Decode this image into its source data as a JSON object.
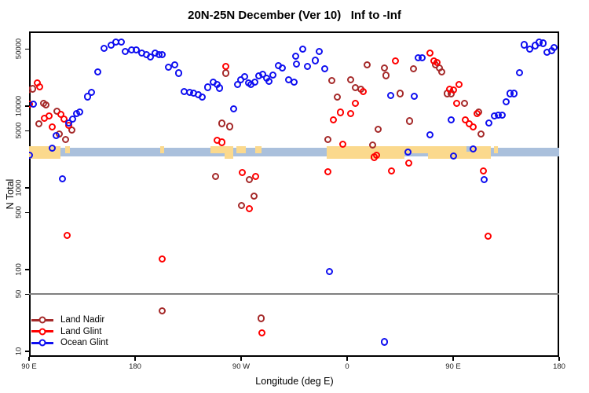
{
  "title": "20N-25N December (Ver 10)   Inf to -Inf",
  "chart_data": {
    "type": "scatter",
    "title": "20N-25N December (Ver 10)   Inf to -Inf",
    "xlabel": "Longitude (deg E)",
    "ylabel": "N Total",
    "x_axis": {
      "unit": "deg E (wrapped eastward 90E to 180)",
      "range": [
        90,
        540
      ],
      "ticks": [
        {
          "lon": 90,
          "label": "90 E"
        },
        {
          "lon": 180,
          "label": "180"
        },
        {
          "lon": 270,
          "label": "90 W"
        },
        {
          "lon": 360,
          "label": "0"
        },
        {
          "lon": 450,
          "label": "90 E"
        },
        {
          "lon": 540,
          "label": "180"
        }
      ]
    },
    "y_axis": {
      "scale": "log",
      "range": [
        8.5,
        80000
      ],
      "ticks": [
        10,
        50,
        100,
        500,
        1000,
        5000,
        10000,
        50000
      ]
    },
    "reference_line": {
      "value": 50,
      "color": "#808080"
    },
    "map_strip": {
      "description": "world land/ocean band for 20N-25N drawn across plot near N=2300-2900",
      "ocean_color": "#aac0dc",
      "land_color": "#fbd98d",
      "land_segments": [
        {
          "from": 90,
          "to": 116.5,
          "cover": "full"
        },
        {
          "from": 120.7,
          "to": 124.7,
          "cover": "top"
        },
        {
          "from": 201.3,
          "to": 204.5,
          "cover": "top"
        },
        {
          "from": 244,
          "to": 256,
          "cover": "top"
        },
        {
          "from": 256,
          "to": 263.3,
          "cover": "full"
        },
        {
          "from": 266,
          "to": 274,
          "cover": "top"
        },
        {
          "from": 282,
          "to": 287.3,
          "cover": "top"
        },
        {
          "from": 342.7,
          "to": 408.7,
          "cover": "full"
        },
        {
          "from": 408.7,
          "to": 428.7,
          "cover": "top"
        },
        {
          "from": 428.7,
          "to": 482,
          "cover": "full"
        },
        {
          "from": 484.7,
          "to": 488,
          "cover": "top"
        }
      ],
      "ocean_notches": [
        {
          "from": 461.3,
          "to": 464.7,
          "cover": "top"
        }
      ]
    },
    "legend": {
      "position": "bottom-left"
    },
    "series": [
      {
        "name": "Land Nadir",
        "color": "#a52a2a",
        "points": [
          [
            89.5,
            15500
          ],
          [
            93.3,
            16000
          ],
          [
            98.7,
            6000
          ],
          [
            102.7,
            10700
          ],
          [
            104.7,
            10200
          ],
          [
            114,
            8550
          ],
          [
            116,
            4500
          ],
          [
            121.3,
            3870
          ],
          [
            126.7,
            5050
          ],
          [
            203.3,
            31
          ],
          [
            248.7,
            1360
          ],
          [
            254,
            6050
          ],
          [
            257.3,
            24900
          ],
          [
            260.7,
            5550
          ],
          [
            270.7,
            600
          ],
          [
            277.3,
            1240
          ],
          [
            281.3,
            785
          ],
          [
            287.3,
            25
          ],
          [
            344,
            3870
          ],
          [
            347.3,
            20300
          ],
          [
            352,
            12800
          ],
          [
            363.3,
            20700
          ],
          [
            367.3,
            16600
          ],
          [
            372,
            15900
          ],
          [
            377.3,
            31600
          ],
          [
            382,
            3320
          ],
          [
            386.7,
            5150
          ],
          [
            392,
            28900
          ],
          [
            393.3,
            23300
          ],
          [
            405.3,
            14100
          ],
          [
            413.3,
            6500
          ],
          [
            416.7,
            28300
          ],
          [
            435.3,
            31600
          ],
          [
            438.7,
            28900
          ],
          [
            440.7,
            25800
          ],
          [
            445.3,
            14100
          ],
          [
            448.7,
            14100
          ],
          [
            460,
            10700
          ],
          [
            472,
            8350
          ],
          [
            474,
            4500
          ]
        ]
      },
      {
        "name": "Land Glint",
        "color": "#ff0000",
        "points": [
          [
            90.7,
            10400
          ],
          [
            97.3,
            18900
          ],
          [
            99.3,
            17000
          ],
          [
            103.3,
            7000
          ],
          [
            107.3,
            7500
          ],
          [
            110,
            5500
          ],
          [
            117.3,
            7850
          ],
          [
            120,
            6850
          ],
          [
            122.7,
            258
          ],
          [
            124,
            5750
          ],
          [
            203.3,
            133
          ],
          [
            250,
            3780
          ],
          [
            254,
            3550
          ],
          [
            257.3,
            30200
          ],
          [
            271.3,
            1520
          ],
          [
            277.3,
            550
          ],
          [
            282.7,
            1360
          ],
          [
            288,
            16.6
          ],
          [
            344,
            1560
          ],
          [
            348.7,
            6700
          ],
          [
            354.7,
            8300
          ],
          [
            356.7,
            3380
          ],
          [
            363.3,
            7950
          ],
          [
            367.3,
            10700
          ],
          [
            374,
            14900
          ],
          [
            383.3,
            2330
          ],
          [
            385.3,
            2480
          ],
          [
            398,
            1590
          ],
          [
            401.3,
            35200
          ],
          [
            412.7,
            1980
          ],
          [
            430.7,
            43900
          ],
          [
            434,
            35200
          ],
          [
            436.7,
            33700
          ],
          [
            447.3,
            15900
          ],
          [
            450.7,
            15600
          ],
          [
            453.3,
            10700
          ],
          [
            455.3,
            18200
          ],
          [
            460.7,
            6700
          ],
          [
            464,
            6000
          ],
          [
            467.3,
            5500
          ],
          [
            470.7,
            7950
          ],
          [
            476,
            1590
          ],
          [
            480,
            252
          ]
        ]
      },
      {
        "name": "Ocean Glint",
        "color": "#0f0ff0",
        "points": [
          [
            90.7,
            2480
          ],
          [
            94,
            10400
          ],
          [
            110,
            3020
          ],
          [
            113.3,
            4300
          ],
          [
            118.7,
            1280
          ],
          [
            124,
            6150
          ],
          [
            127.3,
            6850
          ],
          [
            130.7,
            8000
          ],
          [
            133.3,
            8350
          ],
          [
            140,
            12900
          ],
          [
            143.3,
            14500
          ],
          [
            148.7,
            25800
          ],
          [
            154,
            50200
          ],
          [
            160,
            54800
          ],
          [
            164,
            59800
          ],
          [
            168.7,
            59800
          ],
          [
            172,
            46100
          ],
          [
            177.3,
            48200
          ],
          [
            181.3,
            48200
          ],
          [
            186,
            44100
          ],
          [
            190,
            42100
          ],
          [
            193.3,
            39500
          ],
          [
            197.3,
            44100
          ],
          [
            200.7,
            42100
          ],
          [
            203.3,
            42100
          ],
          [
            208.7,
            29600
          ],
          [
            214,
            31700
          ],
          [
            217.3,
            24900
          ],
          [
            222,
            14800
          ],
          [
            226.7,
            14500
          ],
          [
            230,
            14200
          ],
          [
            234,
            13600
          ],
          [
            237.3,
            12700
          ],
          [
            242,
            16800
          ],
          [
            246.7,
            19300
          ],
          [
            250,
            18100
          ],
          [
            252,
            16400
          ],
          [
            264,
            9150
          ],
          [
            267.3,
            18100
          ],
          [
            270,
            20700
          ],
          [
            273.3,
            22700
          ],
          [
            276.7,
            19000
          ],
          [
            278.7,
            18100
          ],
          [
            282,
            19400
          ],
          [
            285.3,
            23200
          ],
          [
            288.7,
            24300
          ],
          [
            292,
            21800
          ],
          [
            294,
            19900
          ],
          [
            297.3,
            23800
          ],
          [
            302,
            31000
          ],
          [
            305.3,
            29000
          ],
          [
            310.7,
            20800
          ],
          [
            315.3,
            19400
          ],
          [
            316.7,
            40400
          ],
          [
            317.3,
            32400
          ],
          [
            322.7,
            49100
          ],
          [
            326.7,
            30300
          ],
          [
            333.3,
            35600
          ],
          [
            336.7,
            46100
          ],
          [
            341.3,
            28300
          ],
          [
            345.3,
            93
          ],
          [
            392,
            12.9
          ],
          [
            397.3,
            13300
          ],
          [
            412,
            2710
          ],
          [
            417.3,
            13000
          ],
          [
            420.7,
            38700
          ],
          [
            424,
            38700
          ],
          [
            430.7,
            4400
          ],
          [
            448.7,
            6700
          ],
          [
            450.7,
            2420
          ],
          [
            467.3,
            2960
          ],
          [
            476.7,
            1240
          ],
          [
            480.7,
            6150
          ],
          [
            485.3,
            7500
          ],
          [
            488.7,
            7650
          ],
          [
            492,
            7650
          ],
          [
            495.3,
            11200
          ],
          [
            498.7,
            14100
          ],
          [
            502,
            14100
          ],
          [
            506.7,
            25400
          ],
          [
            510.7,
            55400
          ],
          [
            515.3,
            49100
          ],
          [
            520,
            54200
          ],
          [
            523.3,
            59100
          ],
          [
            526.7,
            57800
          ],
          [
            530,
            45100
          ],
          [
            534,
            47100
          ],
          [
            536,
            51300
          ]
        ]
      }
    ]
  }
}
